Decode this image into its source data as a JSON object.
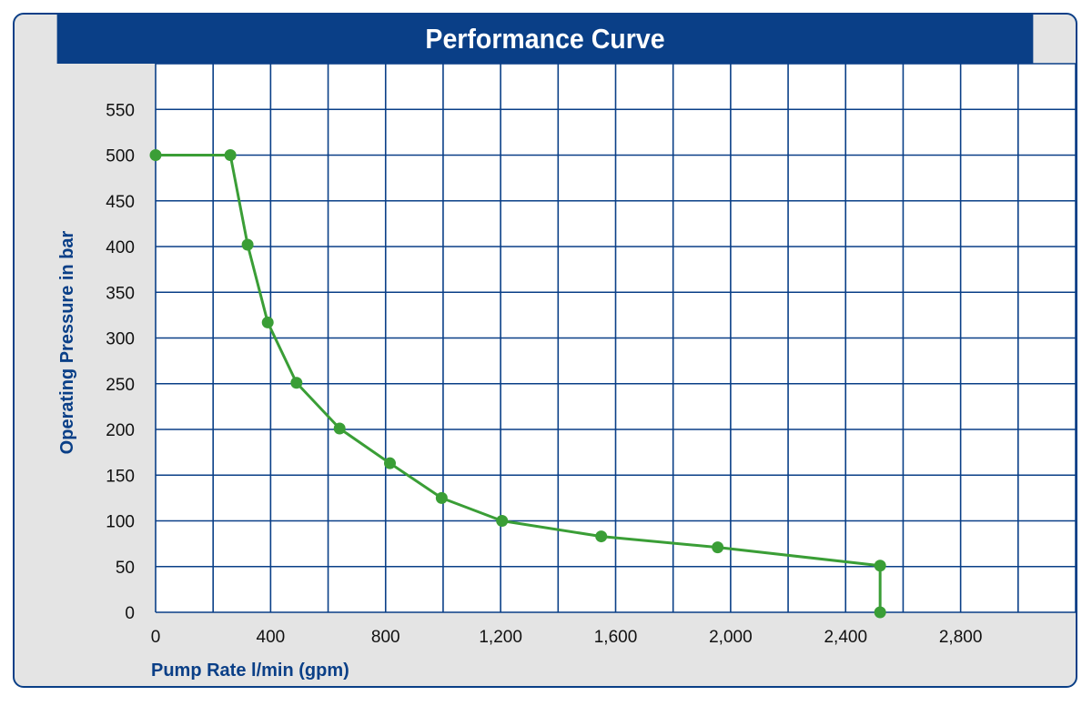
{
  "chart_data": {
    "type": "line",
    "title": "Performance Curve",
    "xlabel": "Pump Rate l/min (gpm)",
    "ylabel": "Operating Pressure in bar",
    "xlim": [
      0,
      3200
    ],
    "ylim": [
      0,
      600
    ],
    "grid": true,
    "x_ticks": [
      0,
      200,
      400,
      600,
      800,
      1000,
      1200,
      1400,
      1600,
      1800,
      2000,
      2200,
      2400,
      2600,
      2800,
      3000,
      3200
    ],
    "x_tick_labels": [
      "0",
      "400",
      "800",
      "1,200",
      "1,600",
      "2,000",
      "2,400",
      "2,800"
    ],
    "x_tick_label_values": [
      0,
      400,
      800,
      1200,
      1600,
      2000,
      2400,
      2800
    ],
    "y_ticks": [
      0,
      50,
      100,
      150,
      200,
      250,
      300,
      350,
      400,
      450,
      500,
      550,
      600
    ],
    "y_tick_labels": [
      "0",
      "50",
      "100",
      "150",
      "200",
      "250",
      "300",
      "350",
      "400",
      "450",
      "500",
      "550"
    ],
    "y_tick_label_values": [
      0,
      50,
      100,
      150,
      200,
      250,
      300,
      350,
      400,
      450,
      500,
      550
    ],
    "series": [
      {
        "color": "#3a9e36",
        "x": [
          0,
          260,
          320,
          390,
          490,
          640,
          815,
          995,
          1205,
          1550,
          1955,
          2520,
          2520
        ],
        "y": [
          500,
          500,
          402,
          317,
          251,
          201,
          163,
          125,
          100,
          83,
          71,
          51,
          0
        ]
      }
    ]
  },
  "colors": {
    "frame": "#0a3f87",
    "plot_background": "#ffffff",
    "outer_background": "#e4e4e4",
    "grid": "#0a3f87",
    "series": "#3a9e36"
  }
}
